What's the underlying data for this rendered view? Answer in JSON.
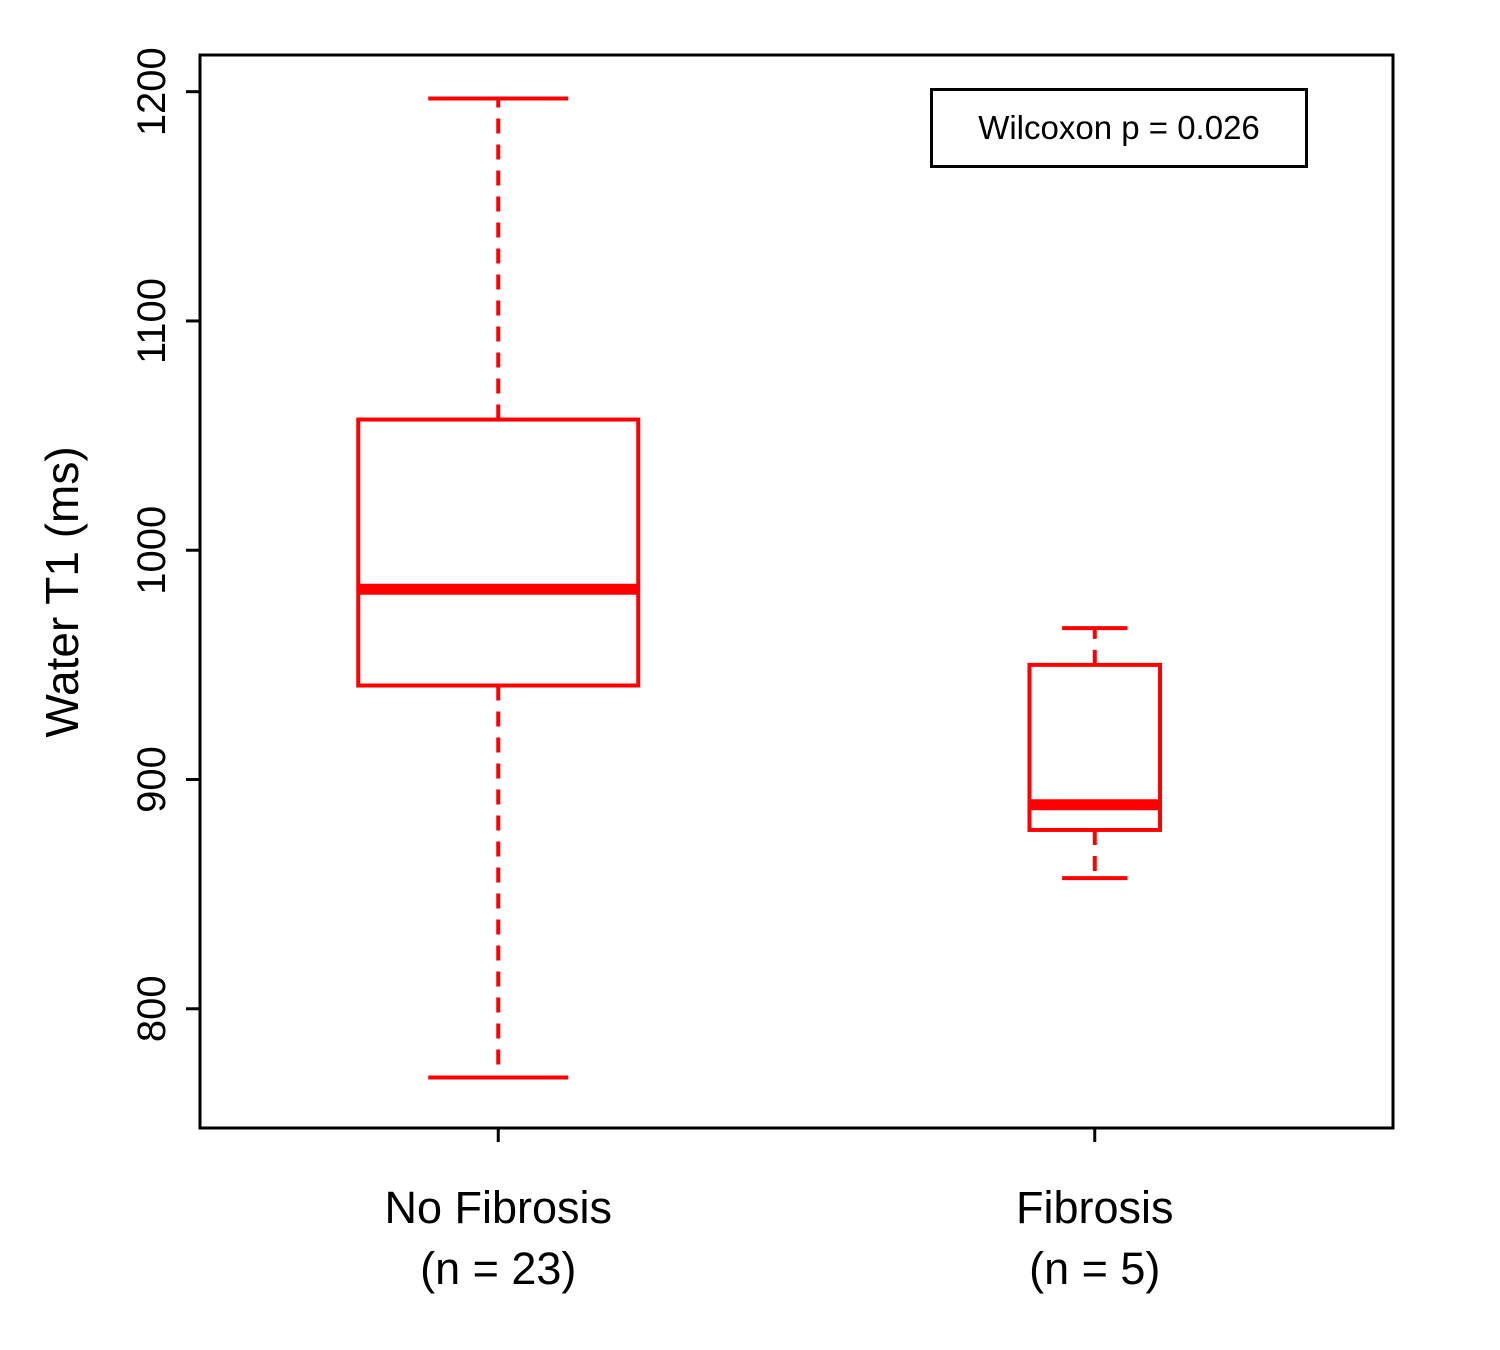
{
  "chart_data": {
    "type": "boxplot",
    "ylabel": "Water T1 (ms)",
    "xlabel": "",
    "ylim": [
      748,
      1216
    ],
    "yticks": [
      800,
      900,
      1000,
      1100,
      1200
    ],
    "xlim": [
      0.5,
      2.5
    ],
    "grid": false,
    "box_color": "#FF0000",
    "axis_color": "#000000",
    "varwidth": true,
    "whisker_style": "dashed",
    "groups": [
      {
        "label": "No Fibrosis",
        "n_label": "(n = 23)",
        "n": 23,
        "x": 1,
        "stats": {
          "whisker_low": 770,
          "q1": 941,
          "median": 983,
          "q3": 1057,
          "whisker_high": 1197
        }
      },
      {
        "label": "Fibrosis",
        "n_label": "(n = 5)",
        "n": 5,
        "x": 2,
        "stats": {
          "whisker_low": 857,
          "q1": 878,
          "median": 889,
          "q3": 950,
          "whisker_high": 966
        }
      }
    ],
    "legend": {
      "text": "Wilcoxon p = 0.026",
      "position": "top-right"
    }
  }
}
